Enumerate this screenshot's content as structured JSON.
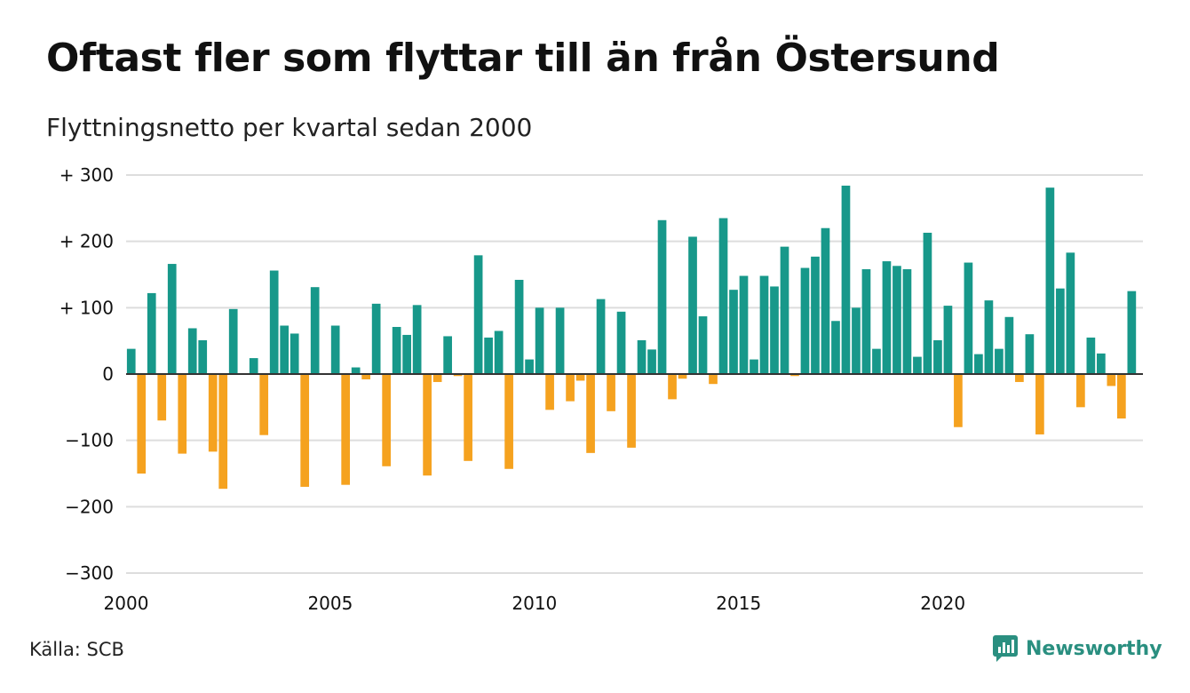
{
  "header": {
    "title": "Oftast fler som flyttar till än från Östersund",
    "subtitle": "Flyttningsnetto per kvartal sedan 2000"
  },
  "footer": {
    "source": "Källa: SCB",
    "brand_name": "Newsworthy",
    "brand_icon": "newsworthy-logo-icon"
  },
  "colors": {
    "positive": "#17988a",
    "negative": "#f5a21f",
    "grid": "#dddddd",
    "zero_line": "#333333",
    "brand": "#2a8f80"
  },
  "chart_data": {
    "type": "bar",
    "title": "Oftast fler som flyttar till än från Östersund",
    "subtitle": "Flyttningsnetto per kvartal sedan 2000",
    "xlabel": "",
    "ylabel": "",
    "ylim": [
      -300,
      300
    ],
    "yticks": [
      300,
      200,
      100,
      0,
      -100,
      -200,
      -300
    ],
    "ytick_labels": [
      "+ 300",
      "+ 200",
      "+ 100",
      "0",
      "−100",
      "−200",
      "−300"
    ],
    "xticks": [
      2000,
      2005,
      2010,
      2015,
      2020
    ],
    "xtick_labels": [
      "2000",
      "2005",
      "2010",
      "2015",
      "2020"
    ],
    "grid": true,
    "legend": "none",
    "x_start": 2000,
    "periods_per_year": 4,
    "values": [
      38,
      -150,
      122,
      -70,
      166,
      -120,
      69,
      51,
      -117,
      -173,
      98,
      0,
      24,
      -92,
      156,
      73,
      61,
      -170,
      131,
      0,
      73,
      -167,
      10,
      -8,
      106,
      -139,
      71,
      59,
      104,
      -153,
      -12,
      57,
      -3,
      -131,
      179,
      55,
      65,
      -143,
      142,
      22,
      100,
      -54,
      100,
      -41,
      -10,
      -119,
      113,
      -56,
      94,
      -111,
      51,
      37,
      232,
      -38,
      -7,
      207,
      87,
      -15,
      235,
      127,
      148,
      22,
      148,
      132,
      192,
      -3,
      160,
      177,
      220,
      80,
      284,
      100,
      158,
      38,
      170,
      163,
      158,
      26,
      213,
      51,
      103,
      -80,
      168,
      30,
      111,
      38,
      86,
      -12,
      60,
      -91,
      281,
      129,
      183,
      -50,
      55,
      31,
      -18,
      -67,
      125
    ]
  }
}
